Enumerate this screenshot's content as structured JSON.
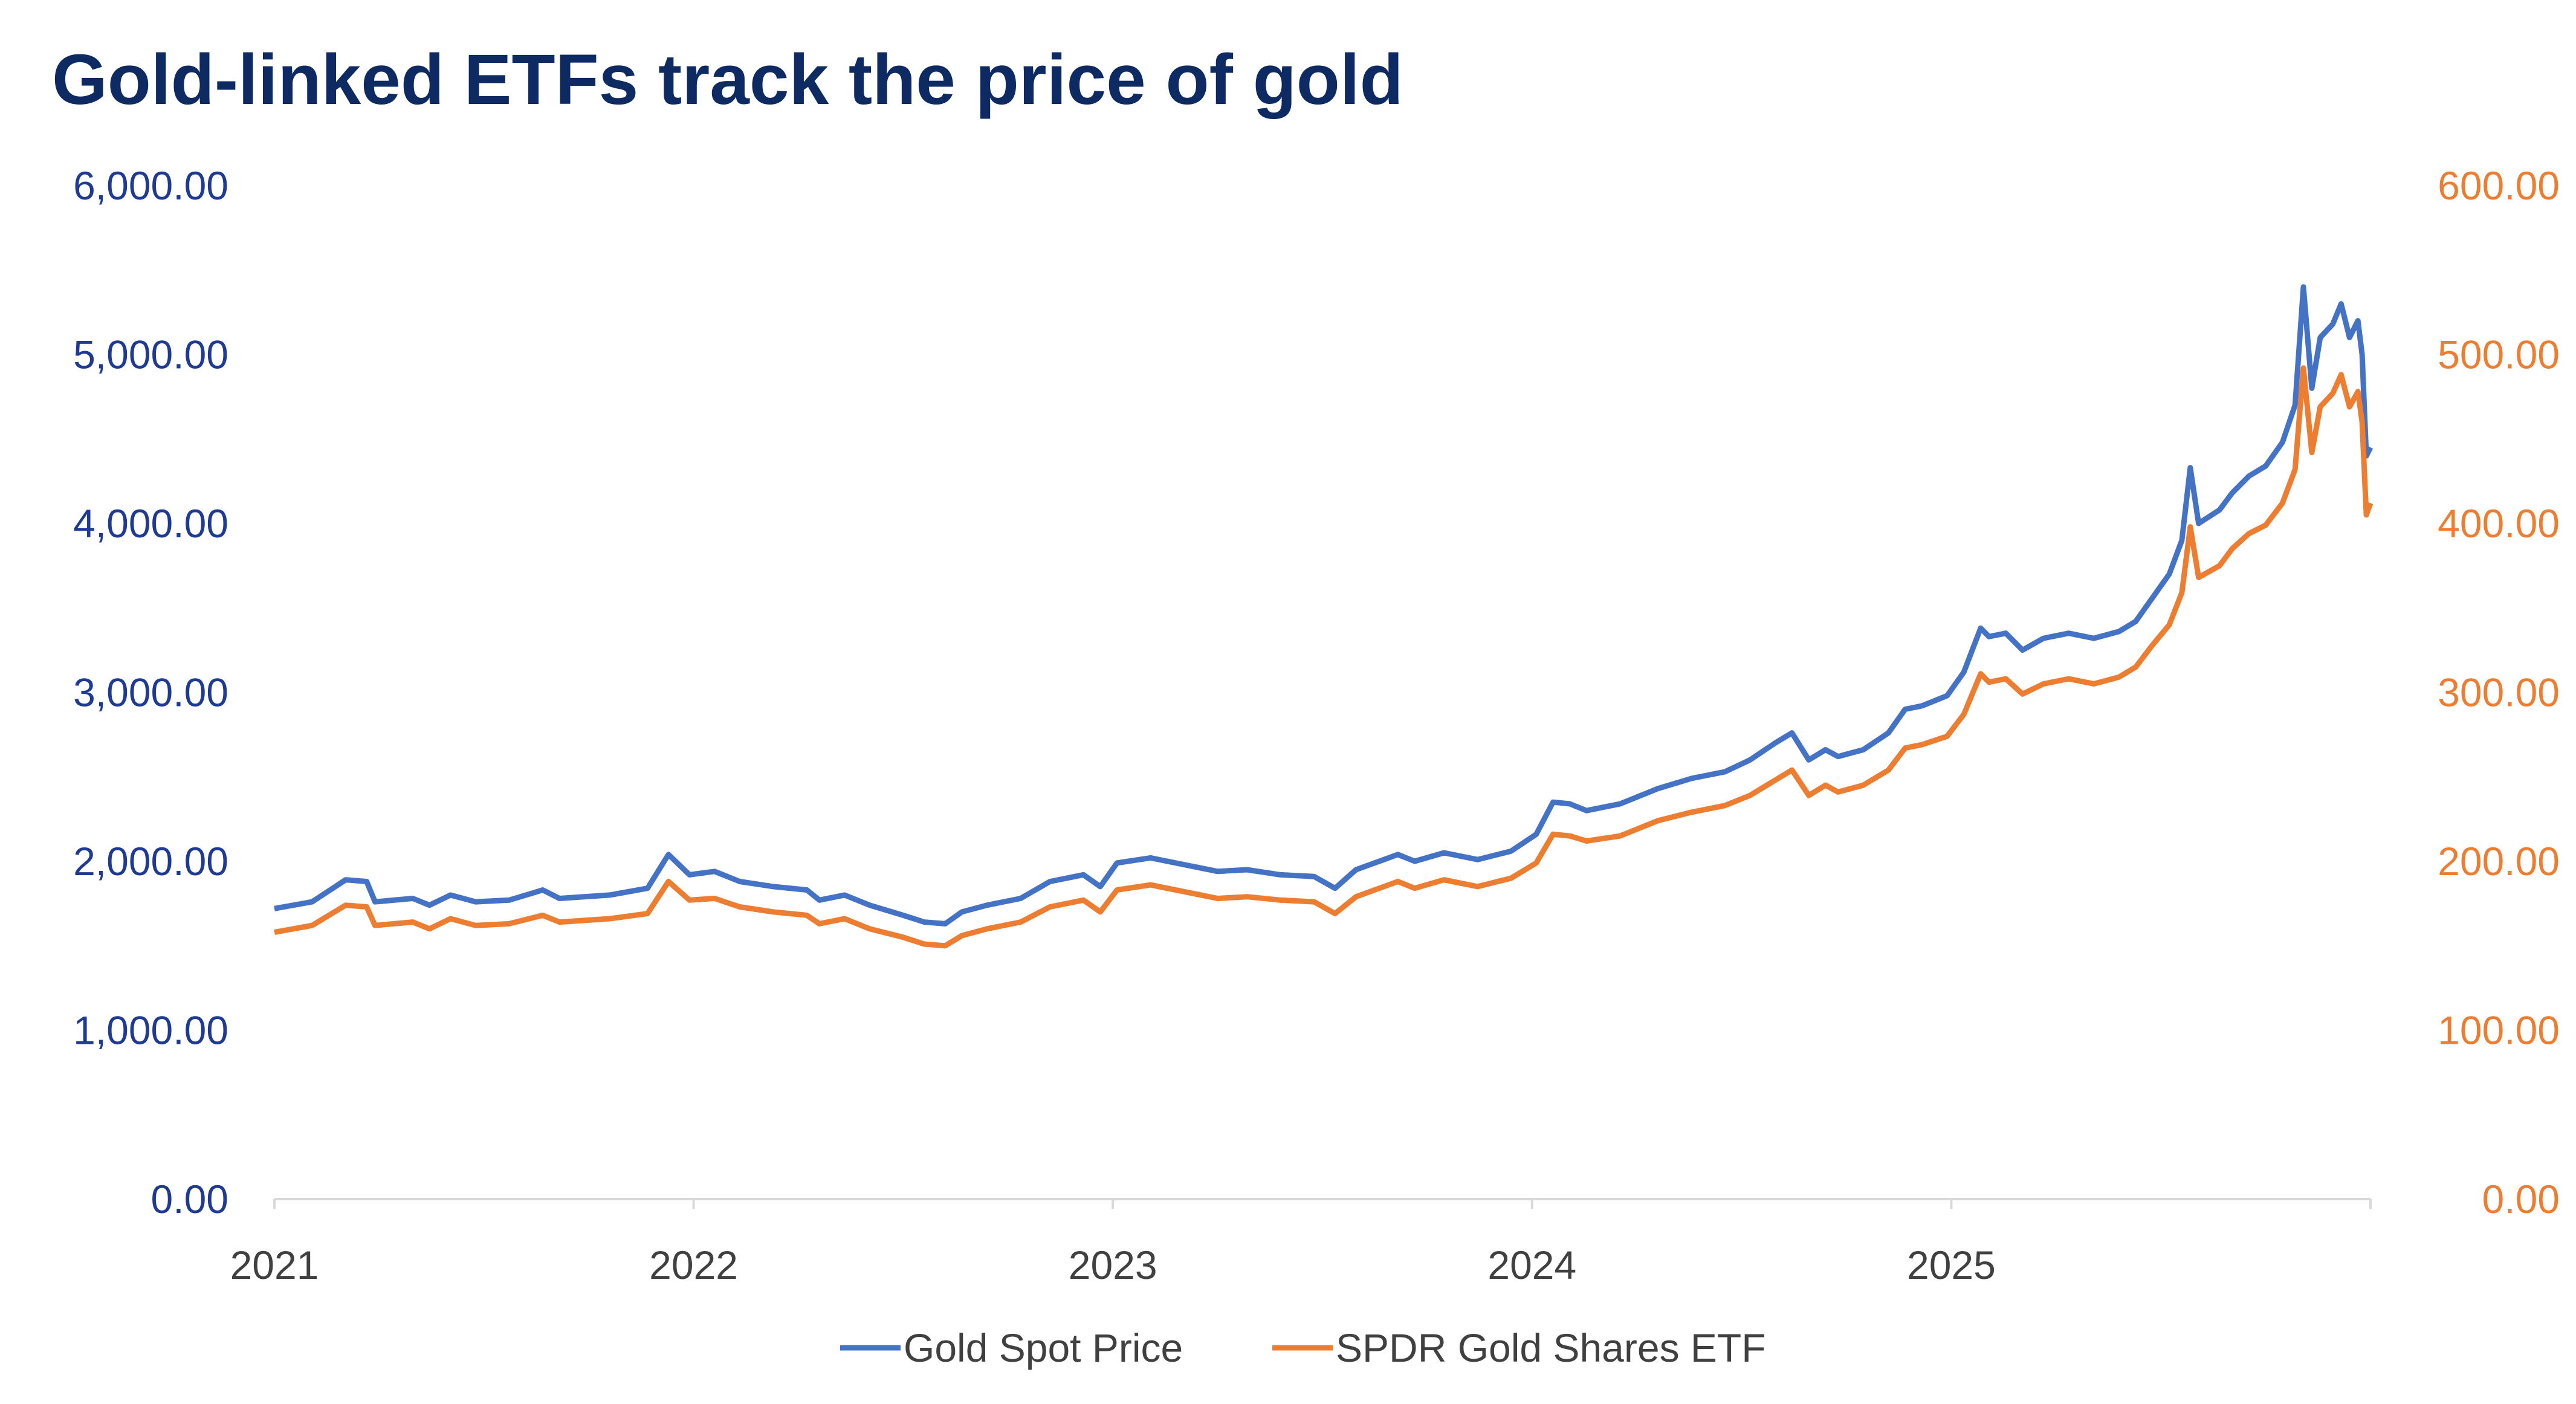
{
  "chart_data": {
    "type": "line",
    "title": "Gold-linked ETFs track the price of gold",
    "xlabel": "",
    "ylabel_left": "",
    "ylabel_right": "",
    "xlim": [
      2021,
      2026
    ],
    "x_ticks": [
      "2021",
      "2022",
      "2023",
      "2024",
      "2025"
    ],
    "x_tick_values": [
      2021,
      2022,
      2023,
      2024,
      2025
    ],
    "ylim_left": [
      0,
      6000
    ],
    "ylim_right": [
      0,
      600
    ],
    "y_ticks_left": [
      "0.00",
      "1,000.00",
      "2,000.00",
      "3,000.00",
      "4,000.00",
      "5,000.00",
      "6,000.00"
    ],
    "y_ticks_right": [
      "0.00",
      "100.00",
      "200.00",
      "300.00",
      "400.00",
      "500.00",
      "600.00"
    ],
    "grid": false,
    "legend_position": "bottom",
    "x": [
      2021.0,
      2021.09,
      2021.17,
      2021.22,
      2021.24,
      2021.33,
      2021.37,
      2021.42,
      2021.48,
      2021.56,
      2021.64,
      2021.68,
      2021.8,
      2021.89,
      2021.94,
      2021.99,
      2022.05,
      2022.11,
      2022.19,
      2022.27,
      2022.3,
      2022.36,
      2022.42,
      2022.5,
      2022.55,
      2022.6,
      2022.64,
      2022.7,
      2022.78,
      2022.85,
      2022.93,
      2022.97,
      2023.01,
      2023.09,
      2023.17,
      2023.25,
      2023.32,
      2023.4,
      2023.48,
      2023.53,
      2023.58,
      2023.68,
      2023.72,
      2023.79,
      2023.87,
      2023.95,
      2024.01,
      2024.05,
      2024.09,
      2024.13,
      2024.21,
      2024.3,
      2024.38,
      2024.46,
      2024.52,
      2024.58,
      2024.62,
      2024.66,
      2024.7,
      2024.73,
      2024.79,
      2024.85,
      2024.89,
      2024.93,
      2024.99,
      2025.03,
      2025.07,
      2025.09,
      2025.13,
      2025.17,
      2025.22,
      2025.28,
      2025.34,
      2025.4,
      2025.44,
      2025.48,
      2025.52,
      2025.55,
      2025.57,
      2025.59,
      2025.64,
      2025.67,
      2025.71,
      2025.75,
      2025.79,
      2025.82,
      2025.84,
      2025.86,
      2025.88,
      2025.91,
      2025.93,
      2025.95,
      2025.97,
      2025.98,
      2025.99,
      2026.0
    ],
    "series": [
      {
        "name": "Gold Spot Price",
        "axis": "left",
        "color": "#4472c4",
        "values": [
          1720,
          1760,
          1890,
          1880,
          1760,
          1780,
          1740,
          1800,
          1760,
          1770,
          1830,
          1780,
          1800,
          1840,
          2040,
          1920,
          1940,
          1880,
          1850,
          1830,
          1770,
          1800,
          1740,
          1680,
          1640,
          1630,
          1700,
          1740,
          1780,
          1880,
          1920,
          1850,
          1990,
          2020,
          1980,
          1940,
          1950,
          1920,
          1910,
          1840,
          1950,
          2040,
          2000,
          2050,
          2010,
          2060,
          2160,
          2350,
          2340,
          2300,
          2340,
          2430,
          2490,
          2530,
          2600,
          2700,
          2760,
          2600,
          2660,
          2620,
          2660,
          2760,
          2900,
          2920,
          2980,
          3120,
          3380,
          3330,
          3350,
          3250,
          3320,
          3350,
          3320,
          3360,
          3420,
          3560,
          3700,
          3900,
          4330,
          4000,
          4080,
          4180,
          4280,
          4340,
          4480,
          4700,
          5400,
          4800,
          5100,
          5180,
          5300,
          5100,
          5200,
          5000,
          4400,
          4450
        ]
      },
      {
        "name": "SPDR Gold Shares ETF",
        "axis": "right",
        "color": "#ed7d31",
        "values": [
          158,
          162,
          174,
          173,
          162,
          164,
          160,
          166,
          162,
          163,
          168,
          164,
          166,
          169,
          188,
          177,
          178,
          173,
          170,
          168,
          163,
          166,
          160,
          155,
          151,
          150,
          156,
          160,
          164,
          173,
          177,
          170,
          183,
          186,
          182,
          178,
          179,
          177,
          176,
          169,
          179,
          188,
          184,
          189,
          185,
          190,
          199,
          216,
          215,
          212,
          215,
          224,
          229,
          233,
          239,
          248,
          254,
          239,
          245,
          241,
          245,
          254,
          267,
          269,
          274,
          287,
          311,
          306,
          308,
          299,
          305,
          308,
          305,
          309,
          315,
          328,
          340,
          359,
          398,
          368,
          375,
          385,
          394,
          399,
          412,
          432,
          492,
          442,
          469,
          477,
          488,
          469,
          478,
          460,
          405,
          412
        ]
      }
    ]
  }
}
